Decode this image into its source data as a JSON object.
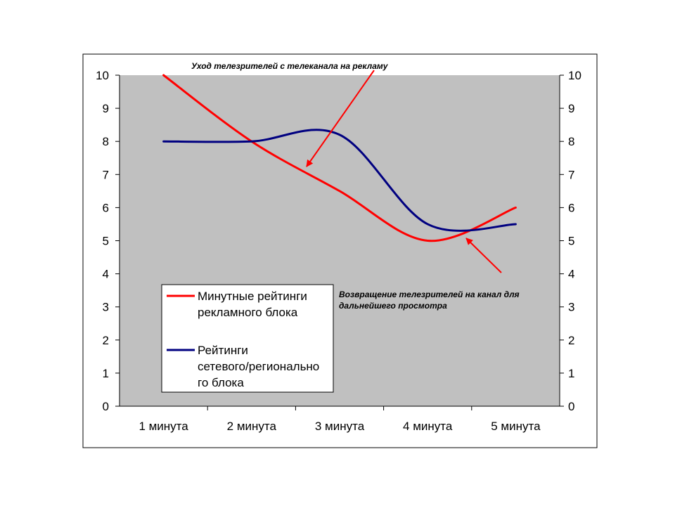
{
  "chart_data": {
    "type": "line",
    "categories": [
      "1 минута",
      "2 минута",
      "3 минута",
      "4 минута",
      "5 минута"
    ],
    "series": [
      {
        "name": "Минутные рейтинги рекламного блока",
        "legend_lines": [
          "Минутные рейтинги",
          "рекламного блока"
        ],
        "values": [
          10,
          8,
          6.5,
          5,
          6
        ],
        "color": "#ff0000"
      },
      {
        "name": "Рейтинги сетевого/регионального блока",
        "legend_lines": [
          "Рейтинги",
          "сетевого/регионально",
          "го блока"
        ],
        "values": [
          8,
          8,
          8.2,
          5.5,
          5.5
        ],
        "color": "#000080"
      }
    ],
    "ylim": [
      0,
      10
    ],
    "yticks": [
      "0",
      "1",
      "2",
      "3",
      "4",
      "5",
      "6",
      "7",
      "8",
      "9",
      "10"
    ],
    "secondary_y": true,
    "plot_background": "#c0c0c0",
    "legend_position": "lower-left",
    "annotations": [
      {
        "lines": [
          "Уход телезрителей с телеканала на рекламу"
        ],
        "arrow_color": "#ff0000"
      },
      {
        "lines": [
          "Возвращение телезрителей на канал для",
          "дальнейшего просмотра"
        ],
        "arrow_color": "#ff0000"
      }
    ]
  }
}
